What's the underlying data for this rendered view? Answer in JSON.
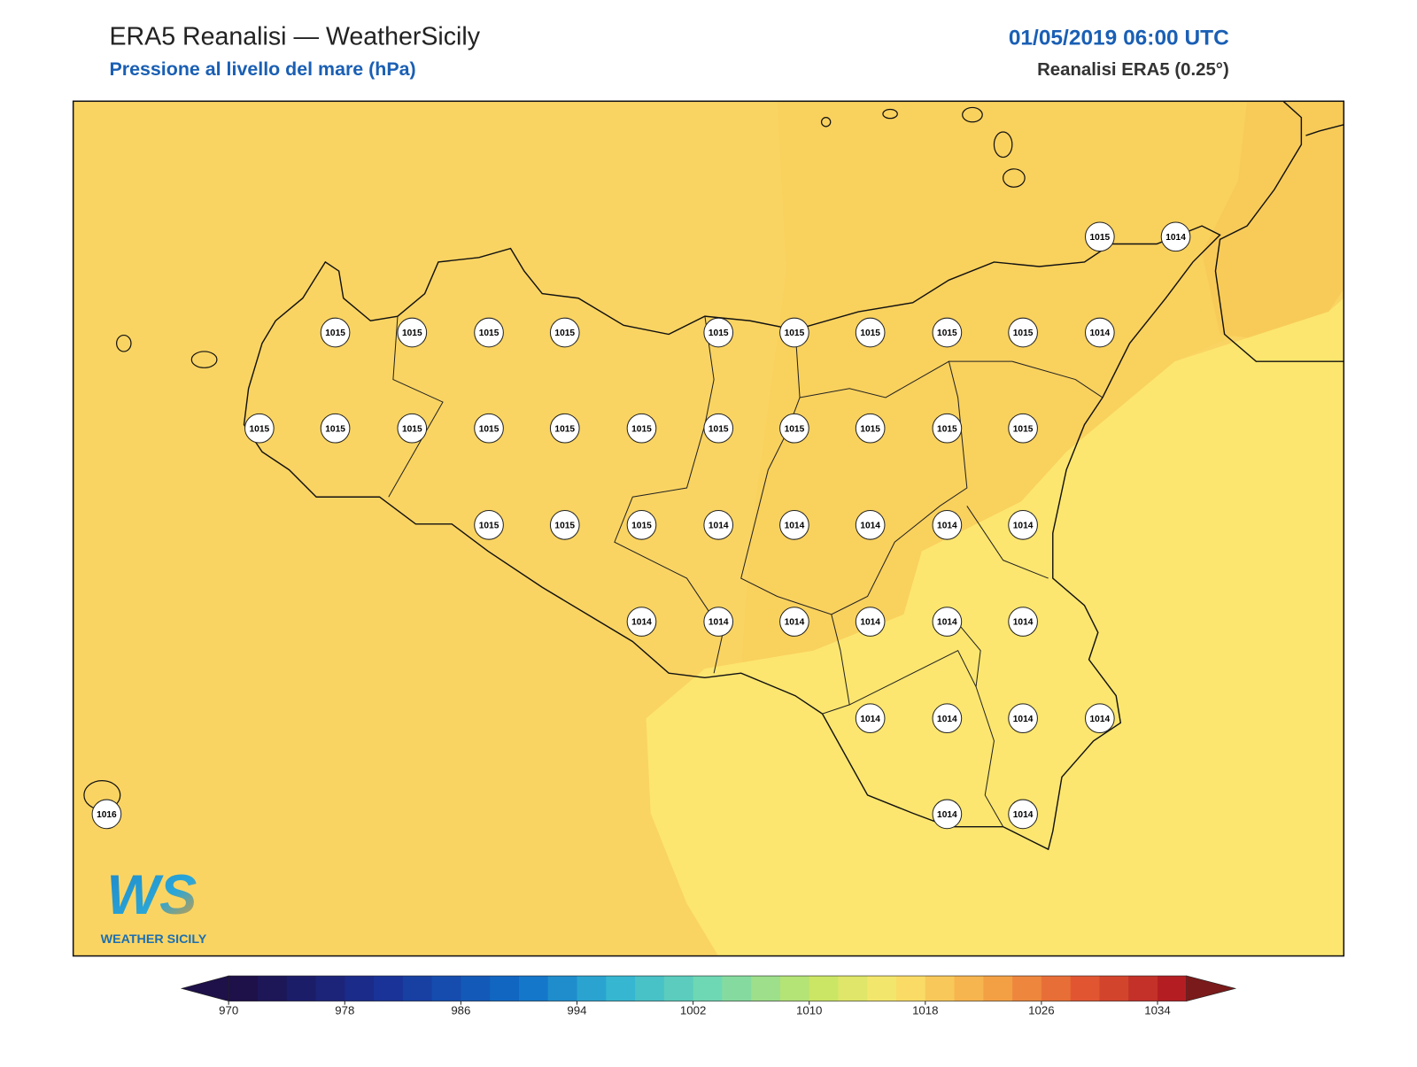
{
  "header": {
    "title": "ERA5 Reanalisi — WeatherSicily",
    "subtitle": "Pressione al livello del mare (hPa)",
    "date": "01/05/2019 06:00 UTC",
    "source": "Reanalisi ERA5 (0.25°)"
  },
  "stations": [
    1015,
    1014,
    1015,
    1015,
    1015,
    1015,
    1015,
    1015,
    1015,
    1015,
    1015,
    1014,
    1015,
    1015,
    1015,
    1015,
    1015,
    1015,
    1015,
    1015,
    1015,
    1015,
    1015,
    1015,
    1015,
    1015,
    1014,
    1014,
    1014,
    1014,
    1014,
    1014,
    1014,
    1014,
    1014,
    1014,
    1014,
    1014,
    1014,
    1014,
    1014,
    1016,
    1014,
    1014
  ],
  "colorbar": {
    "ticks": [
      970,
      978,
      986,
      994,
      1002,
      1010,
      1018,
      1026,
      1034
    ]
  },
  "logo": {
    "mark": "WS",
    "name": "WEATHER SICILY"
  }
}
